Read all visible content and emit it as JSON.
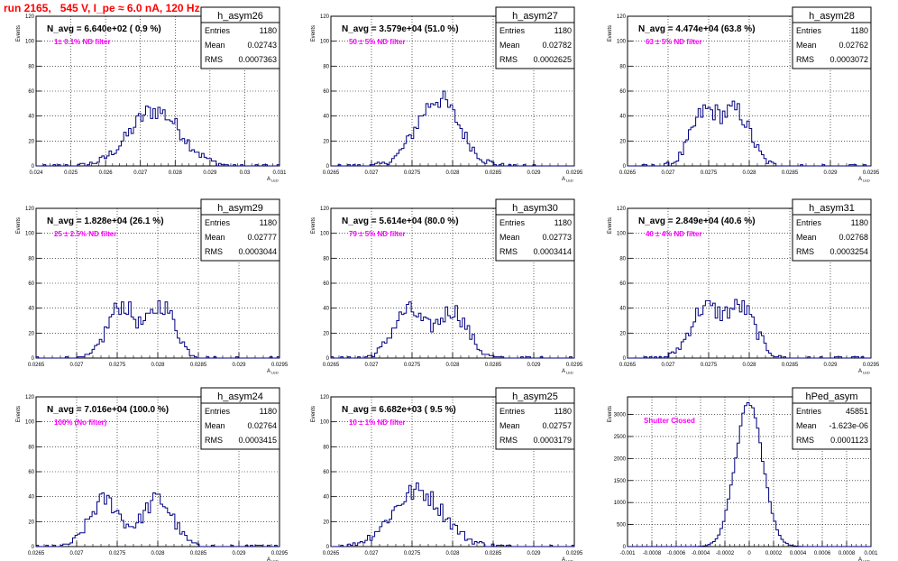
{
  "title": "run 2165,   545 V, I_pe ≈ 6.0 nA, 120 Hz",
  "colors": {
    "hist": "#000080",
    "note": "#ff00ff",
    "title": "#ff0000",
    "grid": "#000000"
  },
  "common": {
    "ylabel": "Events",
    "xlabel": "A",
    "xlabel_sub": "LED",
    "stat_labels": [
      "Entries",
      "Mean",
      "RMS"
    ]
  },
  "chart_data": [
    {
      "type": "bar",
      "name": "h_asym26",
      "navg": "N_avg = 6.640e+02 ( 0.9 %)",
      "note": "1± 0.1% ND filter",
      "stats": {
        "entries": "1180",
        "mean": "0.02743",
        "rms": "0.0007363"
      },
      "xlim": [
        0.024,
        0.031
      ],
      "ylim": [
        0,
        120
      ],
      "xticks": [
        "0.024",
        "0.025",
        "0.026",
        "0.027",
        "0.028",
        "0.029",
        "0.03",
        "0.031"
      ],
      "xtick_values": [
        0.024,
        0.025,
        0.026,
        0.027,
        0.028,
        0.029,
        0.03,
        0.031
      ],
      "yticks": [
        "0",
        "20",
        "40",
        "60",
        "80",
        "100",
        "120"
      ],
      "ytick_values": [
        0,
        20,
        40,
        60,
        80,
        100,
        120
      ],
      "mean": 0.02743,
      "rms": 0.0007363,
      "peaks": [],
      "counts": 1180
    },
    {
      "type": "bar",
      "name": "h_asym27",
      "navg": "N_avg = 3.579e+04 (51.0 %)",
      "note": "50 ± 5% ND filter",
      "stats": {
        "entries": "1180",
        "mean": "0.02782",
        "rms": "0.0002625"
      },
      "xlim": [
        0.0265,
        0.0295
      ],
      "ylim": [
        0,
        120
      ],
      "xticks": [
        "0.0265",
        "0.027",
        "0.0275",
        "0.028",
        "0.0285",
        "0.029",
        "0.0295"
      ],
      "xtick_values": [
        0.0265,
        0.027,
        0.0275,
        0.028,
        0.0285,
        0.029,
        0.0295
      ],
      "yticks": [
        "0",
        "20",
        "40",
        "60",
        "80",
        "100",
        "120"
      ],
      "ytick_values": [
        0,
        20,
        40,
        60,
        80,
        100,
        120
      ],
      "mean": 0.02782,
      "rms": 0.0002625,
      "peaks": [],
      "counts": 1180
    },
    {
      "type": "bar",
      "name": "h_asym28",
      "navg": "N_avg = 4.474e+04 (63.8 %)",
      "note": "63 ± 5% ND filter",
      "stats": {
        "entries": "1180",
        "mean": "0.02762",
        "rms": "0.0003072"
      },
      "xlim": [
        0.0265,
        0.0295
      ],
      "ylim": [
        0,
        120
      ],
      "xticks": [
        "0.0265",
        "0.027",
        "0.0275",
        "0.028",
        "0.0285",
        "0.029",
        "0.0295"
      ],
      "xtick_values": [
        0.0265,
        0.027,
        0.0275,
        0.028,
        0.0285,
        0.029,
        0.0295
      ],
      "yticks": [
        "0",
        "20",
        "40",
        "60",
        "80",
        "100",
        "120"
      ],
      "ytick_values": [
        0,
        20,
        40,
        60,
        80,
        100,
        120
      ],
      "mean": 0.02762,
      "rms": 0.0003072,
      "peaks": [
        0.02745,
        0.02785
      ],
      "counts": 1180
    },
    {
      "type": "bar",
      "name": "h_asym29",
      "navg": "N_avg = 1.828e+04 (26.1 %)",
      "note": "25 ± 2.5% ND filter",
      "stats": {
        "entries": "1180",
        "mean": "0.02777",
        "rms": "0.0003044"
      },
      "xlim": [
        0.0265,
        0.0295
      ],
      "ylim": [
        0,
        120
      ],
      "xticks": [
        "0.0265",
        "0.027",
        "0.0275",
        "0.028",
        "0.0285",
        "0.029",
        "0.0295"
      ],
      "xtick_values": [
        0.0265,
        0.027,
        0.0275,
        0.028,
        0.0285,
        0.029,
        0.0295
      ],
      "yticks": [
        "0",
        "20",
        "40",
        "60",
        "80",
        "100",
        "120"
      ],
      "ytick_values": [
        0,
        20,
        40,
        60,
        80,
        100,
        120
      ],
      "mean": 0.02777,
      "rms": 0.0003044,
      "peaks": [
        0.02755,
        0.02805
      ],
      "counts": 1180
    },
    {
      "type": "bar",
      "name": "h_asym30",
      "navg": "N_avg = 5.614e+04 (80.0 %)",
      "note": "79 ± 5% ND filter",
      "stats": {
        "entries": "1180",
        "mean": "0.02773",
        "rms": "0.0003414"
      },
      "xlim": [
        0.0265,
        0.0295
      ],
      "ylim": [
        0,
        120
      ],
      "xticks": [
        "0.0265",
        "0.027",
        "0.0275",
        "0.028",
        "0.0285",
        "0.029",
        "0.0295"
      ],
      "xtick_values": [
        0.0265,
        0.027,
        0.0275,
        0.028,
        0.0285,
        0.029,
        0.0295
      ],
      "yticks": [
        "0",
        "20",
        "40",
        "60",
        "80",
        "100",
        "120"
      ],
      "ytick_values": [
        0,
        20,
        40,
        60,
        80,
        100,
        120
      ],
      "mean": 0.02773,
      "rms": 0.0003414,
      "peaks": [
        0.02745,
        0.028
      ],
      "counts": 1180
    },
    {
      "type": "bar",
      "name": "h_asym31",
      "navg": "N_avg = 2.849e+04 (40.6 %)",
      "note": "40 ± 4% ND filter",
      "stats": {
        "entries": "1180",
        "mean": "0.02768",
        "rms": "0.0003254"
      },
      "xlim": [
        0.0265,
        0.0295
      ],
      "ylim": [
        0,
        120
      ],
      "xticks": [
        "0.0265",
        "0.027",
        "0.0275",
        "0.028",
        "0.0285",
        "0.029",
        "0.0295"
      ],
      "xtick_values": [
        0.0265,
        0.027,
        0.0275,
        0.028,
        0.0285,
        0.029,
        0.0295
      ],
      "yticks": [
        "0",
        "20",
        "40",
        "60",
        "80",
        "100",
        "120"
      ],
      "ytick_values": [
        0,
        20,
        40,
        60,
        80,
        100,
        120
      ],
      "mean": 0.02768,
      "rms": 0.0003254,
      "peaks": [
        0.02745,
        0.0279
      ],
      "counts": 1180
    },
    {
      "type": "bar",
      "name": "h_asym24",
      "navg": "N_avg = 7.016e+04 (100.0 %)",
      "note": "100% (No filter)",
      "stats": {
        "entries": "1180",
        "mean": "0.02764",
        "rms": "0.0003415"
      },
      "xlim": [
        0.0265,
        0.0295
      ],
      "ylim": [
        0,
        120
      ],
      "xticks": [
        "0.0265",
        "0.027",
        "0.0275",
        "0.028",
        "0.0285",
        "0.029",
        "0.0295"
      ],
      "xtick_values": [
        0.0265,
        0.027,
        0.0275,
        0.028,
        0.0285,
        0.029,
        0.0295
      ],
      "yticks": [
        "0",
        "20",
        "40",
        "60",
        "80",
        "100",
        "120"
      ],
      "ytick_values": [
        0,
        20,
        40,
        60,
        80,
        100,
        120
      ],
      "mean": 0.02764,
      "rms": 0.0003415,
      "peaks": [
        0.02735,
        0.028
      ],
      "counts": 1180
    },
    {
      "type": "bar",
      "name": "h_asym25",
      "navg": "N_avg = 6.682e+03 ( 9.5 %)",
      "note": "10 ± 1% ND filter",
      "stats": {
        "entries": "1180",
        "mean": "0.02757",
        "rms": "0.0003179"
      },
      "xlim": [
        0.0265,
        0.0295
      ],
      "ylim": [
        0,
        120
      ],
      "xticks": [
        "0.0265",
        "0.027",
        "0.0275",
        "0.028",
        "0.0285",
        "0.029",
        "0.0295"
      ],
      "xtick_values": [
        0.0265,
        0.027,
        0.0275,
        0.028,
        0.0285,
        0.029,
        0.0295
      ],
      "yticks": [
        "0",
        "20",
        "40",
        "60",
        "80",
        "100",
        "120"
      ],
      "ytick_values": [
        0,
        20,
        40,
        60,
        80,
        100,
        120
      ],
      "mean": 0.02757,
      "rms": 0.0003179,
      "peaks": [],
      "counts": 1180
    },
    {
      "type": "bar",
      "name": "hPed_asym",
      "navg": "",
      "note": "Shutter Closed",
      "stats": {
        "entries": "45851",
        "mean": "-1.623e-06",
        "rms": "0.0001123"
      },
      "xlim": [
        -0.001,
        0.001
      ],
      "ylim": [
        0,
        3400
      ],
      "xticks": [
        "-0.001",
        "-0.0008",
        "-0.0006",
        "-0.0004",
        "-0.0002",
        "0",
        "0.0002",
        "0.0004",
        "0.0006",
        "0.0008",
        "0.001"
      ],
      "xtick_values": [
        -0.001,
        -0.0008,
        -0.0006,
        -0.0004,
        -0.0002,
        0,
        0.0002,
        0.0004,
        0.0006,
        0.0008,
        0.001
      ],
      "yticks": [
        "0",
        "500",
        "1000",
        "1500",
        "2000",
        "2500",
        "3000"
      ],
      "ytick_values": [
        0,
        500,
        1000,
        1500,
        2000,
        2500,
        3000
      ],
      "mean": -1.623e-06,
      "rms": 0.0001123,
      "peaks": [],
      "counts": 45851
    }
  ]
}
